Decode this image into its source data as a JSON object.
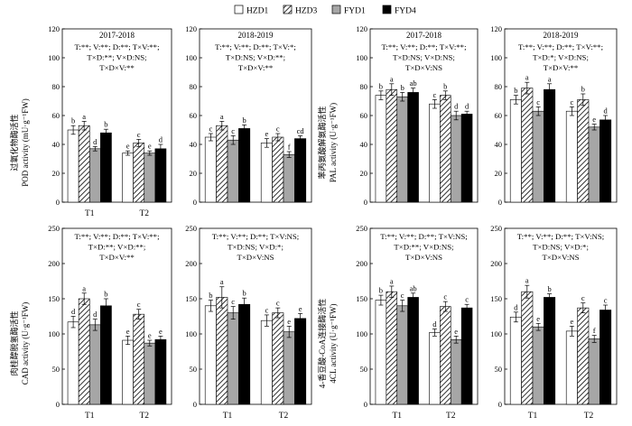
{
  "legend": {
    "placement": "top",
    "entries": [
      {
        "name": "HZD1",
        "pattern": "white"
      },
      {
        "name": "HZD3",
        "pattern": "hatch"
      },
      {
        "name": "FYD1",
        "pattern": "gray"
      },
      {
        "name": "FYD4",
        "pattern": "black"
      }
    ]
  },
  "colors": {
    "white": "#ffffff",
    "gray": "#a6a6a6",
    "black": "#000000",
    "hatch_line": "#000000"
  },
  "chart_data": [
    {
      "type": "bar",
      "panel": "pod-2017-2018",
      "title": "2017-2018",
      "stats": [
        "T:**; V:**; D:**; T×V:**;",
        "T×D:**; V×D:NS;",
        "T×D×V:**"
      ],
      "ylabel_cn": "过氧化物酶活性",
      "ylabel": "POD activity (mU·g⁻¹FW)",
      "ylim": [
        0,
        120
      ],
      "yticks": [
        0,
        20,
        40,
        60,
        80,
        100,
        120
      ],
      "categories": [
        "T1",
        "T2"
      ],
      "series": [
        {
          "name": "HZD1",
          "values": [
            50,
            34
          ],
          "errors": [
            3,
            1.5
          ],
          "letters": [
            "b",
            "e"
          ]
        },
        {
          "name": "HZD3",
          "values": [
            53,
            41
          ],
          "errors": [
            3,
            2.5
          ],
          "letters": [
            "a",
            "c"
          ]
        },
        {
          "name": "FYD1",
          "values": [
            37,
            34
          ],
          "errors": [
            1.5,
            1.5
          ],
          "letters": [
            "d",
            "e"
          ]
        },
        {
          "name": "FYD4",
          "values": [
            48,
            37
          ],
          "errors": [
            2.5,
            3
          ],
          "letters": [
            "b",
            "d"
          ]
        }
      ]
    },
    {
      "type": "bar",
      "panel": "pod-2018-2019",
      "title": "2018-2019",
      "stats": [
        "T:**; V:**; D:**; T×V:*;",
        "T×D:NS; V×D:**;",
        "T×D×V:**"
      ],
      "ylabel_cn": "",
      "ylabel": "",
      "ylim": [
        0,
        120
      ],
      "yticks": [
        0,
        20,
        40,
        60,
        80,
        100,
        120
      ],
      "categories": [
        "",
        ""
      ],
      "series": [
        {
          "name": "HZD1",
          "values": [
            45,
            41
          ],
          "errors": [
            2.5,
            3
          ],
          "letters": [
            "c",
            "e"
          ]
        },
        {
          "name": "HZD3",
          "values": [
            53,
            45
          ],
          "errors": [
            3,
            2.5
          ],
          "letters": [
            "a",
            "c"
          ]
        },
        {
          "name": "FYD1",
          "values": [
            43,
            33
          ],
          "errors": [
            3,
            2
          ],
          "letters": [
            "c",
            "f"
          ]
        },
        {
          "name": "FYD4",
          "values": [
            51,
            44
          ],
          "errors": [
            2.5,
            2
          ],
          "letters": [
            "b",
            "cd"
          ]
        }
      ]
    },
    {
      "type": "bar",
      "panel": "pal-2017-2018",
      "title": "2017-2018",
      "stats": [
        "T:**; V:**; D:**; T×V:**;",
        "T×D:NS; V×D:NS;",
        "T×D×V:NS"
      ],
      "ylabel_cn": "苯丙氨酸解氨酶活性",
      "ylabel": "PAL activity (U·g⁻¹FW)",
      "ylim": [
        0,
        120
      ],
      "yticks": [
        0,
        20,
        40,
        60,
        80,
        100,
        120
      ],
      "categories": [
        "",
        ""
      ],
      "series": [
        {
          "name": "HZD1",
          "values": [
            74,
            68
          ],
          "errors": [
            3,
            3
          ],
          "letters": [
            "b",
            "c"
          ]
        },
        {
          "name": "HZD3",
          "values": [
            78,
            74
          ],
          "errors": [
            4,
            3
          ],
          "letters": [
            "a",
            "b"
          ]
        },
        {
          "name": "FYD1",
          "values": [
            73,
            60
          ],
          "errors": [
            3,
            3
          ],
          "letters": [
            "b",
            "d"
          ]
        },
        {
          "name": "FYD4",
          "values": [
            76,
            61
          ],
          "errors": [
            3,
            2
          ],
          "letters": [
            "ab",
            "d"
          ]
        }
      ]
    },
    {
      "type": "bar",
      "panel": "pal-2018-2019",
      "title": "2018-2019",
      "stats": [
        "T:**; V:**; D:**; T×V:**;",
        "T×D:*; V×D:NS;",
        "T×D×V:**"
      ],
      "ylabel_cn": "",
      "ylabel": "",
      "ylim": [
        0,
        120
      ],
      "yticks": [
        0,
        20,
        40,
        60,
        80,
        100,
        120
      ],
      "categories": [
        "",
        ""
      ],
      "series": [
        {
          "name": "HZD1",
          "values": [
            71,
            63
          ],
          "errors": [
            3,
            3
          ],
          "letters": [
            "b",
            "c"
          ]
        },
        {
          "name": "HZD3",
          "values": [
            79,
            71
          ],
          "errors": [
            4,
            4
          ],
          "letters": [
            "a",
            "b"
          ]
        },
        {
          "name": "FYD1",
          "values": [
            63,
            52
          ],
          "errors": [
            3,
            2
          ],
          "letters": [
            "c",
            "e"
          ]
        },
        {
          "name": "FYD4",
          "values": [
            78,
            57
          ],
          "errors": [
            4,
            3
          ],
          "letters": [
            "a",
            "d"
          ]
        }
      ]
    },
    {
      "type": "bar",
      "panel": "cad-2017-2018",
      "title": "",
      "stats": [
        "T:**; V:**; D:**; T×V:**;",
        "T×D:**; V×D:**;",
        "T×D×V:**"
      ],
      "ylabel_cn": "肉桂醇脱氢酶活性",
      "ylabel": "CAD activity (U·g⁻¹FW)",
      "ylim": [
        0,
        250
      ],
      "yticks": [
        0,
        50,
        100,
        150,
        200,
        250
      ],
      "categories": [
        "T1",
        "T2"
      ],
      "series": [
        {
          "name": "HZD1",
          "values": [
            117,
            91
          ],
          "errors": [
            8,
            6
          ],
          "letters": [
            "d",
            "e"
          ]
        },
        {
          "name": "HZD3",
          "values": [
            150,
            128
          ],
          "errors": [
            8,
            7
          ],
          "letters": [
            "a",
            "c"
          ]
        },
        {
          "name": "FYD1",
          "values": [
            113,
            87
          ],
          "errors": [
            8,
            4
          ],
          "letters": [
            "d",
            "e"
          ]
        },
        {
          "name": "FYD4",
          "values": [
            140,
            92
          ],
          "errors": [
            10,
            5
          ],
          "letters": [
            "b",
            "e"
          ]
        }
      ]
    },
    {
      "type": "bar",
      "panel": "cad-2018-2019",
      "title": "",
      "stats": [
        "T:**; V:**; D:**; T×V:NS;",
        "T×D:NS; V×D:*;",
        "T×D×V:NS"
      ],
      "ylabel_cn": "",
      "ylabel": "",
      "ylim": [
        0,
        250
      ],
      "yticks": [
        0,
        50,
        100,
        150,
        200,
        250
      ],
      "categories": [
        "T1",
        "T2"
      ],
      "series": [
        {
          "name": "HZD1",
          "values": [
            140,
            119
          ],
          "errors": [
            8,
            8
          ],
          "letters": [
            "b",
            "c"
          ]
        },
        {
          "name": "HZD3",
          "values": [
            152,
            130
          ],
          "errors": [
            15,
            7
          ],
          "letters": [
            "a",
            "c"
          ]
        },
        {
          "name": "FYD1",
          "values": [
            130,
            103
          ],
          "errors": [
            9,
            8
          ],
          "letters": [
            "c",
            "e"
          ]
        },
        {
          "name": "FYD4",
          "values": [
            142,
            122
          ],
          "errors": [
            9,
            7
          ],
          "letters": [
            "b",
            "e"
          ]
        }
      ]
    },
    {
      "type": "bar",
      "panel": "4cl-2017-2018",
      "title": "",
      "stats": [
        "T:**; V:**; D:**; T×V:NS;",
        "T×D:**; V×D:NS;",
        "T×D×V:NS"
      ],
      "ylabel_cn": "4-香豆酸-CoA连接酶活性",
      "ylabel": "4CL activity (U·g⁻¹FW)",
      "ylim": [
        0,
        250
      ],
      "yticks": [
        0,
        50,
        100,
        150,
        200,
        250
      ],
      "categories": [
        "T1",
        "T2"
      ],
      "series": [
        {
          "name": "HZD1",
          "values": [
            148,
            102
          ],
          "errors": [
            7,
            5
          ],
          "letters": [
            "b",
            "d"
          ]
        },
        {
          "name": "HZD3",
          "values": [
            160,
            139
          ],
          "errors": [
            8,
            7
          ],
          "letters": [
            "a",
            "c"
          ]
        },
        {
          "name": "FYD1",
          "values": [
            140,
            92
          ],
          "errors": [
            8,
            5
          ],
          "letters": [
            "c",
            "e"
          ]
        },
        {
          "name": "FYD4",
          "values": [
            152,
            137
          ],
          "errors": [
            6,
            5
          ],
          "letters": [
            "ab",
            "c"
          ]
        }
      ]
    },
    {
      "type": "bar",
      "panel": "4cl-2018-2019",
      "title": "",
      "stats": [
        "T:**; V:**; D:**; T×V:NS;",
        "T×D:NS; V×D:*;",
        "T×D×V:NS"
      ],
      "ylabel_cn": "",
      "ylabel": "",
      "ylim": [
        0,
        250
      ],
      "yticks": [
        0,
        50,
        100,
        150,
        200,
        250
      ],
      "categories": [
        "T1",
        "T2"
      ],
      "series": [
        {
          "name": "HZD1",
          "values": [
            124,
            104
          ],
          "errors": [
            7,
            7
          ],
          "letters": [
            "d",
            "e"
          ]
        },
        {
          "name": "HZD3",
          "values": [
            160,
            137
          ],
          "errors": [
            9,
            7
          ],
          "letters": [
            "a",
            "c"
          ]
        },
        {
          "name": "FYD1",
          "values": [
            110,
            93
          ],
          "errors": [
            5,
            5
          ],
          "letters": [
            "e",
            "f"
          ]
        },
        {
          "name": "FYD4",
          "values": [
            152,
            134
          ],
          "errors": [
            5,
            7
          ],
          "letters": [
            "b",
            "c"
          ]
        }
      ]
    }
  ]
}
